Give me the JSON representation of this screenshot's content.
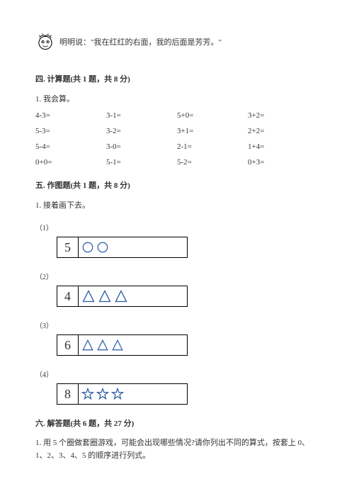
{
  "quote": {
    "text": "明明说：\"我在红红的右面，我的后面是芳芳。\""
  },
  "section4": {
    "header": "四. 计算题(共 1 题，共 8 分)",
    "sub": "1. 我会算。",
    "rows": [
      [
        "4-3=",
        "3-1=",
        "5+0=",
        "3+2="
      ],
      [
        "5-3=",
        "3-2=",
        "3+1=",
        "2+2="
      ],
      [
        "5-4=",
        "3-0=",
        "2-1=",
        "1+4="
      ],
      [
        "0+0=",
        "5-1=",
        "5-2=",
        "0+3="
      ]
    ]
  },
  "section5": {
    "header": "五. 作图题(共 1 题，共 8 分)",
    "sub": "1. 接着画下去。",
    "items": [
      {
        "label": "（1）",
        "num": "5",
        "shape": "circle",
        "count": 2,
        "stroke": "#2a5aa5",
        "size": 18
      },
      {
        "label": "（2）",
        "num": "4",
        "shape": "triangle",
        "count": 3,
        "stroke": "#2a5aa5",
        "size": 20
      },
      {
        "label": "（3）",
        "num": "6",
        "shape": "triangle",
        "count": 3,
        "stroke": "#2a5aa5",
        "size": 18
      },
      {
        "label": "（4）",
        "num": "8",
        "shape": "star",
        "count": 3,
        "stroke": "#2a5aa5",
        "size": 18
      }
    ]
  },
  "section6": {
    "header": "六. 解答题(共 6 题，共 27 分)",
    "q1": "1. 用 5 个圈做套圈游戏，可能会出现哪些情况?请你列出不同的算式，按套上 0、1、2、3、4、5 的顺序进行列式。"
  },
  "colors": {
    "text": "#333333",
    "border": "#000000",
    "shapeStroke": "#2a5aa5",
    "faceBg": "#ffffff"
  }
}
